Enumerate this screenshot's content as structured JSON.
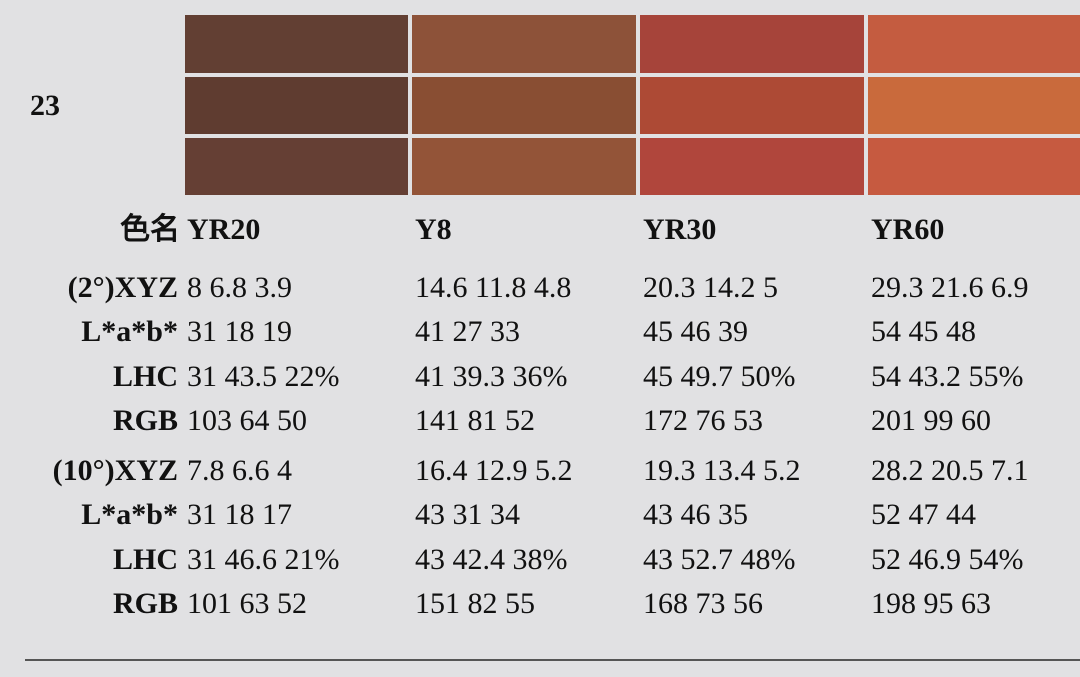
{
  "label": "23",
  "header": {
    "label": "色名",
    "columns": [
      "YR20",
      "Y8",
      "YR30",
      "YR60"
    ]
  },
  "groups": [
    {
      "rows": [
        {
          "label": "(2°)XYZ",
          "values": [
            "8 6.8 3.9",
            "14.6 11.8 4.8",
            "20.3 14.2 5",
            "29.3 21.6 6.9"
          ]
        },
        {
          "label": "L*a*b*",
          "values": [
            "31 18 19",
            "41 27 33",
            "45 46 39",
            "54 45 48"
          ]
        },
        {
          "label": "LHC",
          "values": [
            "31 43.5 22%",
            "41 39.3 36%",
            "45 49.7 50%",
            "54 43.2 55%"
          ]
        },
        {
          "label": "RGB",
          "values": [
            "103 64 50",
            "141 81 52",
            "172 76 53",
            "201 99 60"
          ]
        }
      ]
    },
    {
      "rows": [
        {
          "label": "(10°)XYZ",
          "values": [
            "7.8 6.6 4",
            "16.4 12.9 5.2",
            "19.3 13.4 5.2",
            "28.2 20.5 7.1"
          ]
        },
        {
          "label": "L*a*b*",
          "values": [
            "31 18 17",
            "43 31 34",
            "43 46 35",
            "52 47 44"
          ]
        },
        {
          "label": "LHC",
          "values": [
            "31 46.6 21%",
            "43 42.4 38%",
            "43 52.7 48%",
            "52 46.9 54%"
          ]
        },
        {
          "label": "RGB",
          "values": [
            "101 63 52",
            "151 82 55",
            "168 73 56",
            "198 95 63"
          ]
        }
      ]
    }
  ]
}
